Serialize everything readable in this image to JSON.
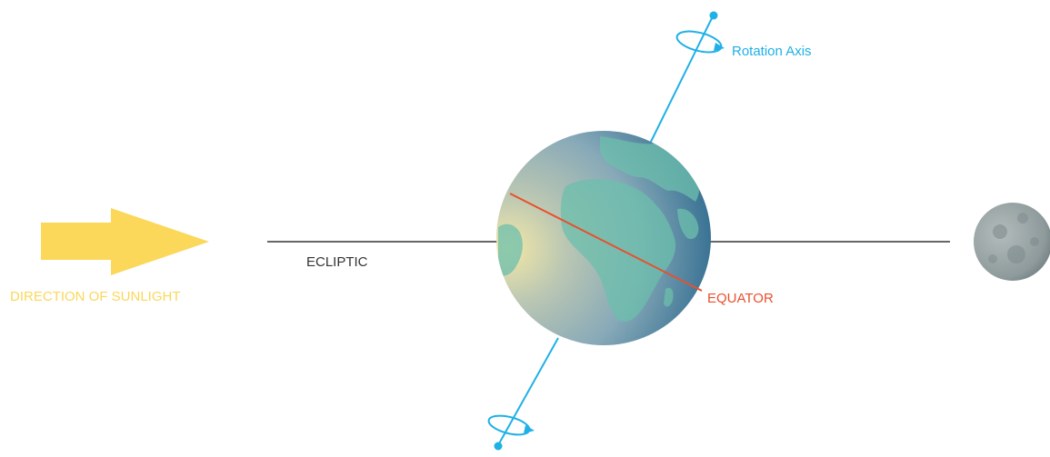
{
  "labels": {
    "sunlight": "DIRECTION OF SUNLIGHT",
    "ecliptic": "ECLIPTIC",
    "equator": "EQUATOR",
    "rotation_axis": "Rotation Axis"
  },
  "colors": {
    "sunlight": "#fbd75a",
    "ecliptic": "#333333",
    "equator": "#e8502e",
    "axis": "#1fb0e6",
    "earth_light": "#f1e6a6",
    "earth_mid": "#7fa7b6",
    "earth_dark": "#1d5677",
    "land": "#6cbfad",
    "moon": "#8f9b9c"
  },
  "icons": {
    "sun_arrow": "arrow-right-icon",
    "rotation": "rotation-arrow-icon"
  }
}
